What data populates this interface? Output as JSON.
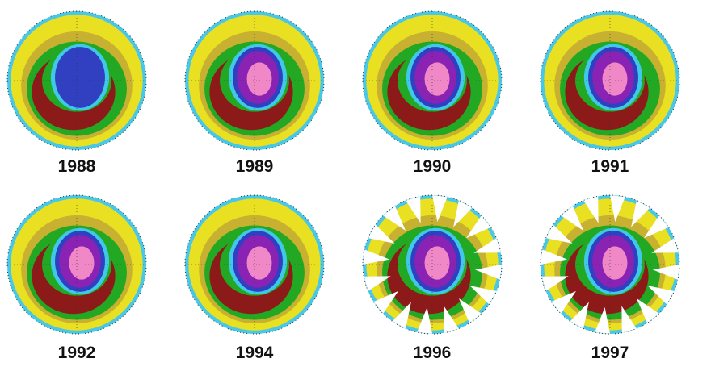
{
  "panels": [
    {
      "year": "1988"
    },
    {
      "year": "1989"
    },
    {
      "year": "1990"
    },
    {
      "year": "1991"
    },
    {
      "year": "1992"
    },
    {
      "year": "1994"
    },
    {
      "year": "1996"
    },
    {
      "year": "1997"
    }
  ]
}
